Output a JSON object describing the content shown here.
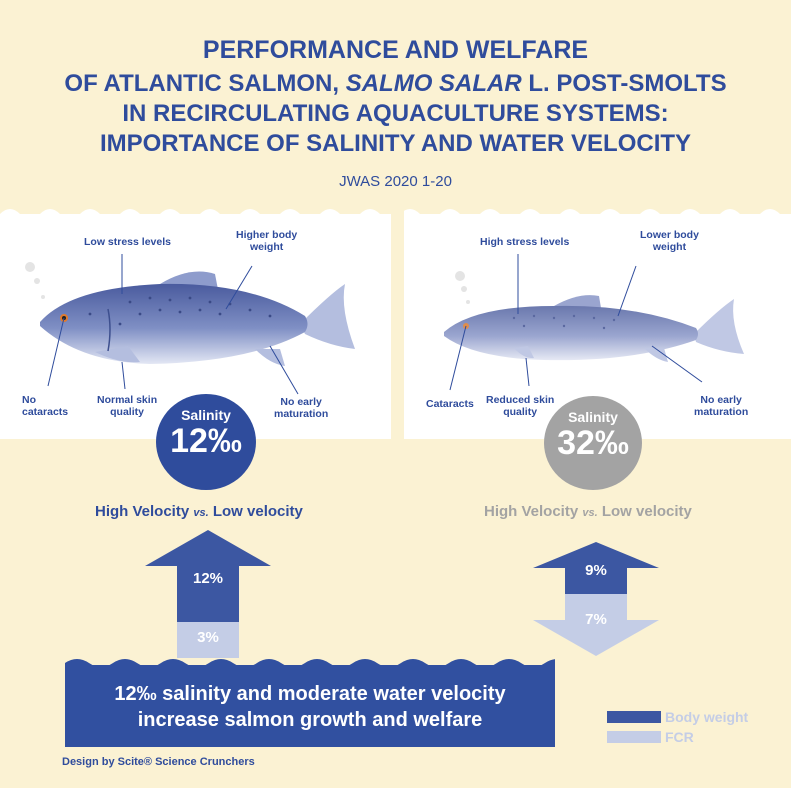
{
  "title": {
    "line1": "PERFORMANCE AND WELFARE",
    "line2_pre": "OF ATLANTIC SALMON, ",
    "line2_italic": "SALMO SALAR",
    "line2_post": " L. POST-SMOLTS",
    "line3": "IN RECIRCULATING AQUACULTURE SYSTEMS:",
    "line4": "IMPORTANCE OF SALINITY AND WATER VELOCITY"
  },
  "journal": "JWAS 2020 1-20",
  "left_panel": {
    "labels": {
      "stress": "Low stress levels",
      "weight_1": "Higher body",
      "weight_2": "weight",
      "cataracts_1": "No",
      "cataracts_2": "cataracts",
      "skin_1": "Normal skin",
      "skin_2": "quality",
      "maturation_1": "No early",
      "maturation_2": "maturation"
    },
    "badge": {
      "label": "Salinity",
      "value": "12‰",
      "color": "#2f4c9c"
    },
    "comparison": {
      "high": "High Velocity",
      "vs": "vs.",
      "low": "Low velocity"
    },
    "arrow": {
      "body_weight": "12%",
      "fcr": "3%",
      "direction": "up"
    }
  },
  "right_panel": {
    "labels": {
      "stress": "High stress levels",
      "weight_1": "Lower body",
      "weight_2": "weight",
      "cataracts": "Cataracts",
      "skin_1": "Reduced skin",
      "skin_2": "quality",
      "maturation_1": "No early",
      "maturation_2": "maturation"
    },
    "badge": {
      "label": "Salinity",
      "value": "32‰",
      "color": "#a3a3a3"
    },
    "comparison": {
      "high": "High Velocity",
      "vs": "vs.",
      "low": "Low velocity"
    },
    "arrow": {
      "body_weight": "9%",
      "fcr": "7%",
      "direction": "down"
    }
  },
  "conclusion": {
    "line1": "12‰ salinity and moderate water velocity",
    "line2": "increase salmon growth and welfare"
  },
  "legend": {
    "body_weight": "Body weight",
    "fcr": "FCR",
    "body_weight_color": "#3c57a2",
    "fcr_color": "#c4cde6"
  },
  "credit": "Design by Scite® Science Crunchers",
  "colors": {
    "background": "#fbf2d3",
    "accent_blue": "#2f4c9c",
    "grey": "#a3a3a3"
  }
}
